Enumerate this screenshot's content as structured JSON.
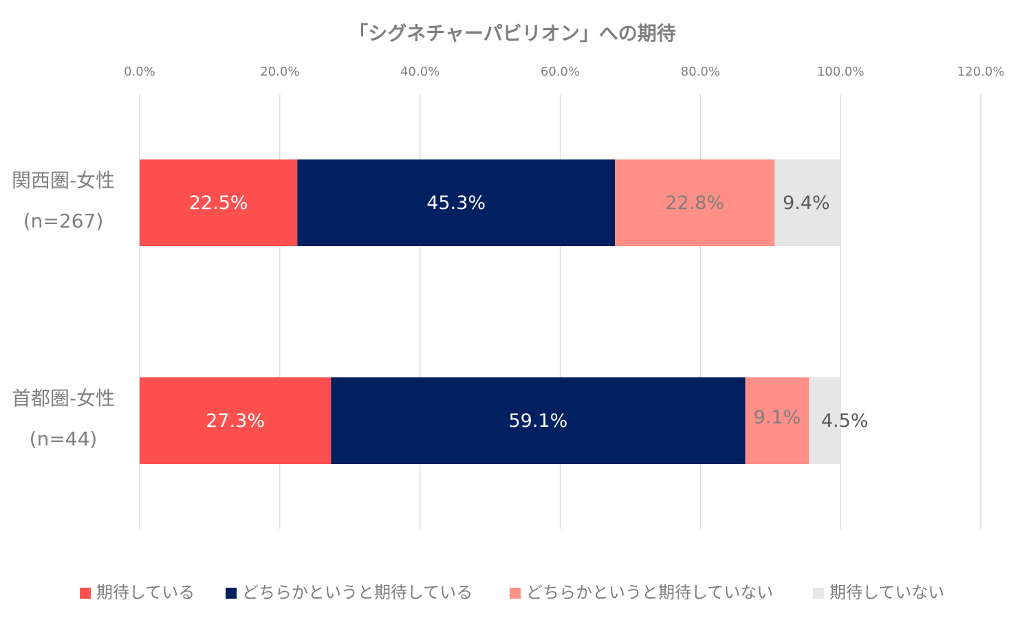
{
  "chart_data": {
    "type": "bar",
    "orientation": "horizontal",
    "stacked": true,
    "title": "「シグネチャーパビリオン」への期待",
    "xlim": [
      0,
      120
    ],
    "ticks": [
      "0.0%",
      "20.0%",
      "40.0%",
      "60.0%",
      "80.0%",
      "100.0%",
      "120.0%"
    ],
    "tick_values": [
      0,
      20,
      40,
      60,
      80,
      100,
      120
    ],
    "grid": true,
    "legend": "bottom",
    "categories": [
      {
        "line1": "関西圏-女性",
        "line2": "(n=267)"
      },
      {
        "line1": "首都圏-女性",
        "line2": "(n=44)"
      }
    ],
    "series": [
      {
        "name": "期待している",
        "color": "#ff5050",
        "label_color": "#ffffff",
        "values": [
          22.5,
          27.3
        ],
        "labels": [
          "22.5%",
          "27.3%"
        ]
      },
      {
        "name": "どちらかというと期待している",
        "color": "#002060",
        "label_color": "#ffffff",
        "values": [
          45.3,
          59.1
        ],
        "labels": [
          "45.3%",
          "59.1%"
        ]
      },
      {
        "name": "どちらかというと期待していない",
        "color": "#ff8f87",
        "label_color": "#7f7f7f",
        "values": [
          22.8,
          9.1
        ],
        "labels": [
          "22.8%",
          "9.1%"
        ]
      },
      {
        "name": "期待していない",
        "color": "#e7e6e6",
        "label_color": "#595959",
        "values": [
          9.4,
          4.5
        ],
        "labels": [
          "9.4%",
          "4.5%"
        ]
      }
    ]
  }
}
